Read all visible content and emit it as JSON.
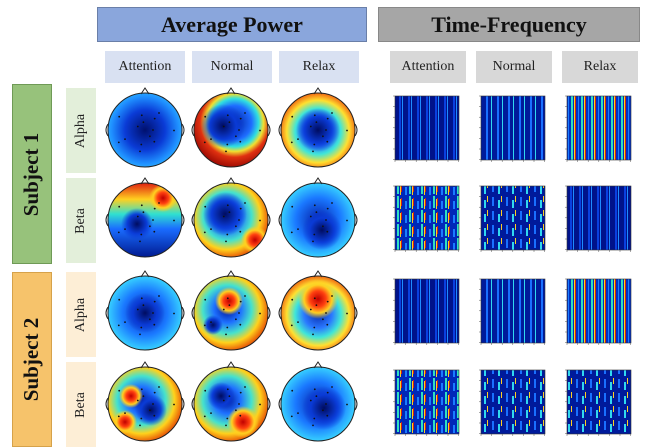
{
  "headers": {
    "average_power": "Average Power",
    "time_frequency": "Time-Frequency"
  },
  "conditions": [
    "Attention",
    "Normal",
    "Relax"
  ],
  "subjects": [
    "Subject 1",
    "Subject 2"
  ],
  "bands": [
    "Alpha",
    "Beta"
  ],
  "colors": {
    "power_header": "#8aa6dc",
    "tf_header": "#a6a6a6",
    "subject1": "#97c27b",
    "subject2": "#f6c36b"
  },
  "colormap": "jet"
}
